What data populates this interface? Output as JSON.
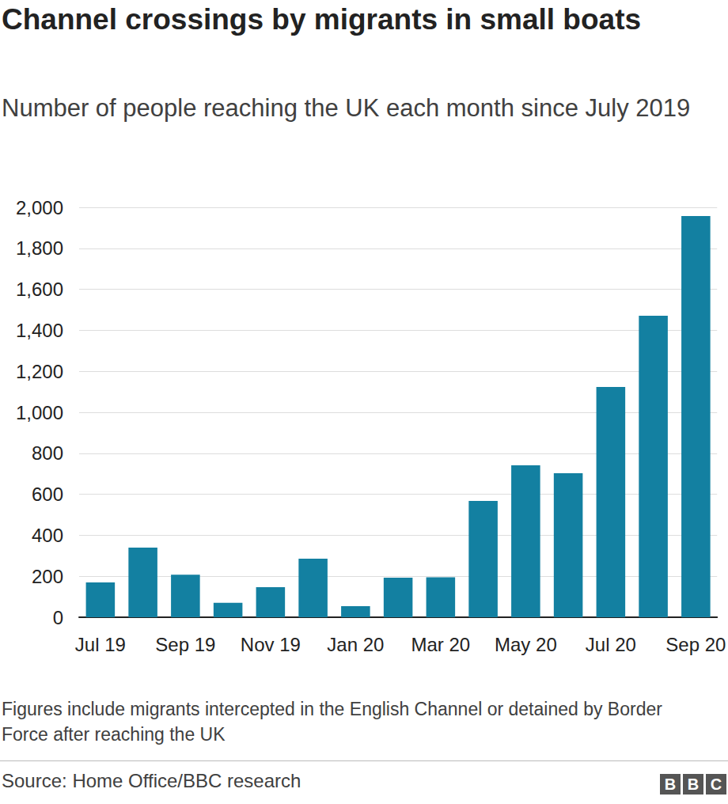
{
  "chart_data": {
    "type": "bar",
    "title": "Channel crossings by migrants in small boats",
    "subtitle": "Number of people reaching the UK each month since July 2019",
    "note": "Figures include migrants intercepted in the English Channel or detained by Border Force after reaching the UK",
    "source": "Source: Home Office/BBC research",
    "logo": "BBC",
    "categories": [
      "Jul 19",
      null,
      "Sep 19",
      null,
      "Nov 19",
      null,
      "Jan 20",
      null,
      "Mar 20",
      null,
      "May 20",
      null,
      "Jul 20",
      null,
      "Sep 20"
    ],
    "values": [
      170,
      340,
      208,
      70,
      147,
      286,
      54,
      193,
      195,
      568,
      741,
      703,
      1124,
      1471,
      1958
    ],
    "color": "#1380a1",
    "ylim": [
      0,
      2000
    ],
    "yticks": [
      0,
      200,
      400,
      600,
      800,
      {
        "value": 1000,
        "label": "1,000"
      },
      {
        "value": 1200,
        "label": "1,200"
      },
      {
        "value": 1400,
        "label": "1,400"
      },
      {
        "value": 1600,
        "label": "1,600"
      },
      {
        "value": 1800,
        "label": "1,800"
      },
      {
        "value": 2000,
        "label": "2,000"
      }
    ],
    "grid": true
  }
}
